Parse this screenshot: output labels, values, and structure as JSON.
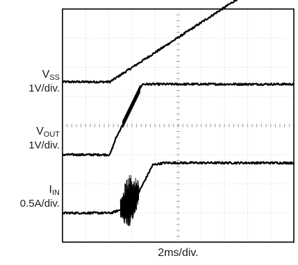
{
  "chart_data": {
    "type": "line",
    "title": "",
    "xlabel": "2ms/div.",
    "ylabel": "",
    "grid": true,
    "x_divisions": 10,
    "y_divisions": 8,
    "channels": [
      {
        "key": "vss",
        "name": "V",
        "sub": "SS",
        "scale": "1V/div.",
        "baseline_div": 5.5,
        "points": [
          [
            0,
            0
          ],
          [
            2.05,
            0
          ],
          [
            8.0,
            3.07
          ],
          [
            8.45,
            3.12
          ],
          [
            10,
            3.1
          ]
        ]
      },
      {
        "key": "vout",
        "name": "V",
        "sub": "OUT",
        "scale": "1V/div.",
        "baseline_div": 3.0,
        "points": [
          [
            0,
            0
          ],
          [
            2.05,
            0
          ],
          [
            2.3,
            0.55
          ],
          [
            3.45,
            2.42
          ],
          [
            10,
            2.42
          ]
        ]
      },
      {
        "key": "iin",
        "name": "I",
        "sub": "IN",
        "scale": "0.5A/div.",
        "baseline_div": 1.0,
        "points": [
          [
            0,
            0
          ],
          [
            2.1,
            0
          ],
          [
            2.55,
            0.12
          ],
          [
            3.1,
            0.4
          ],
          [
            3.9,
            1.65
          ],
          [
            4.4,
            1.72
          ],
          [
            10,
            1.72
          ]
        ]
      }
    ],
    "burst": {
      "x_start": 2.5,
      "x_end": 3.3,
      "amplitude_div": 1.35
    }
  }
}
